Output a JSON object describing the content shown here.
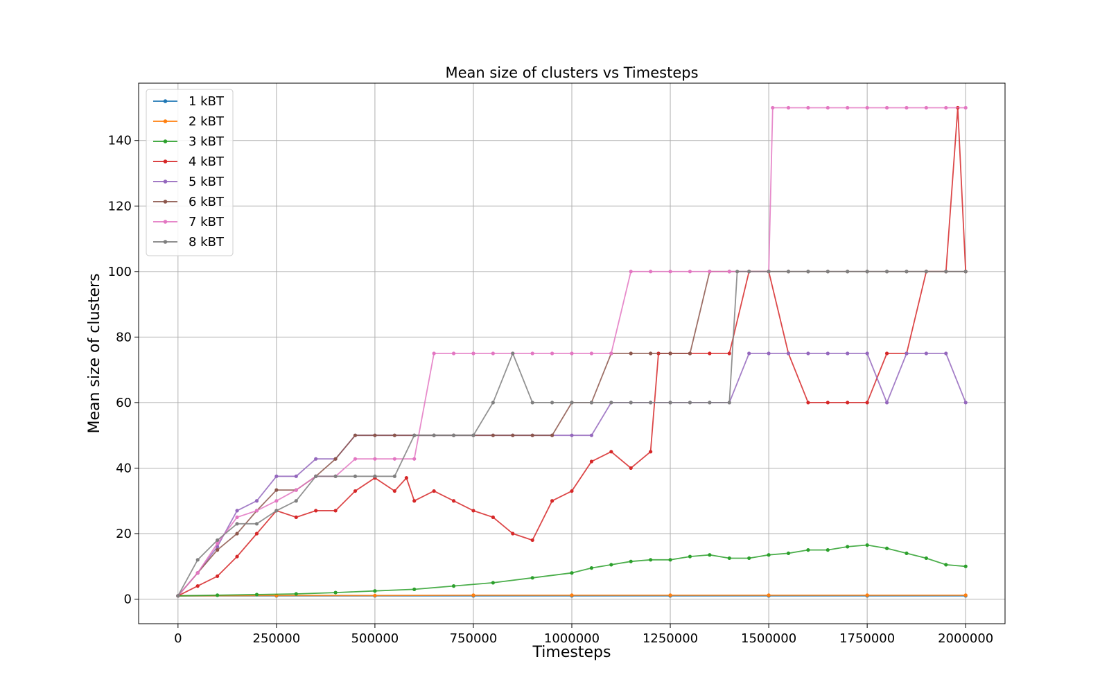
{
  "chart_data": {
    "type": "line",
    "title": "Mean size of clusters vs Timesteps",
    "xlabel": "Timesteps",
    "ylabel": "Mean size of clusters",
    "xlim": [
      -100000,
      2100000
    ],
    "ylim": [
      -7.5,
      157.5
    ],
    "xticks": [
      0,
      250000,
      500000,
      750000,
      1000000,
      1250000,
      1500000,
      1750000,
      2000000
    ],
    "yticks": [
      0,
      20,
      40,
      60,
      80,
      100,
      120,
      140
    ],
    "grid": true,
    "legend_position": "upper-left",
    "markers": true,
    "series": [
      {
        "name": "1 kBT",
        "color": "#1f77b4",
        "x": [
          0,
          250000,
          500000,
          750000,
          1000000,
          1250000,
          1500000,
          1750000,
          2000000
        ],
        "y": [
          1,
          1,
          1,
          1,
          1,
          1,
          1,
          1,
          1
        ]
      },
      {
        "name": "2 kBT",
        "color": "#ff7f0e",
        "x": [
          0,
          250000,
          500000,
          750000,
          1000000,
          1250000,
          1500000,
          1750000,
          2000000
        ],
        "y": [
          1,
          1.1,
          1.1,
          1.2,
          1.2,
          1.2,
          1.2,
          1.2,
          1.2
        ]
      },
      {
        "name": "3 kBT",
        "color": "#2ca02c",
        "x": [
          0,
          100000,
          200000,
          300000,
          400000,
          500000,
          600000,
          700000,
          800000,
          900000,
          1000000,
          1050000,
          1100000,
          1150000,
          1200000,
          1250000,
          1300000,
          1350000,
          1400000,
          1450000,
          1500000,
          1550000,
          1600000,
          1650000,
          1700000,
          1750000,
          1800000,
          1850000,
          1900000,
          1950000,
          2000000
        ],
        "y": [
          1,
          1.2,
          1.4,
          1.6,
          2,
          2.5,
          3,
          4,
          5,
          6.5,
          8,
          9.5,
          10.5,
          11.5,
          12,
          12,
          13,
          13.5,
          12.5,
          12.5,
          13.5,
          14,
          15,
          15,
          16,
          16.5,
          15.5,
          14,
          12.5,
          10.5,
          10
        ]
      },
      {
        "name": "4 kBT",
        "color": "#d62728",
        "x": [
          0,
          50000,
          100000,
          150000,
          200000,
          250000,
          300000,
          350000,
          400000,
          450000,
          500000,
          550000,
          580000,
          600000,
          650000,
          700000,
          750000,
          800000,
          850000,
          900000,
          950000,
          1000000,
          1050000,
          1100000,
          1150000,
          1200000,
          1220000,
          1250000,
          1300000,
          1350000,
          1400000,
          1450000,
          1500000,
          1550000,
          1600000,
          1650000,
          1700000,
          1750000,
          1800000,
          1850000,
          1900000,
          1950000,
          1980000,
          2000000
        ],
        "y": [
          1,
          4,
          7,
          13,
          20,
          27,
          25,
          27,
          27,
          33,
          37,
          33,
          37,
          30,
          33,
          30,
          27,
          25,
          20,
          18,
          30,
          33,
          42,
          45,
          40,
          45,
          75,
          75,
          75,
          75,
          75,
          100,
          100,
          75,
          60,
          60,
          60,
          60,
          75,
          75,
          100,
          100,
          150,
          100
        ]
      },
      {
        "name": "5 kBT",
        "color": "#9467bd",
        "x": [
          0,
          50000,
          100000,
          150000,
          200000,
          250000,
          300000,
          350000,
          400000,
          450000,
          500000,
          550000,
          600000,
          650000,
          700000,
          750000,
          800000,
          850000,
          900000,
          950000,
          1000000,
          1050000,
          1100000,
          1150000,
          1200000,
          1250000,
          1300000,
          1350000,
          1400000,
          1450000,
          1500000,
          1550000,
          1600000,
          1650000,
          1700000,
          1750000,
          1800000,
          1850000,
          1900000,
          1950000,
          2000000
        ],
        "y": [
          1,
          8,
          16,
          27,
          30,
          37.5,
          37.5,
          42.8,
          42.8,
          50,
          50,
          50,
          50,
          50,
          50,
          50,
          50,
          50,
          50,
          50,
          50,
          50,
          60,
          60,
          60,
          60,
          60,
          60,
          60,
          75,
          75,
          75,
          75,
          75,
          75,
          75,
          60,
          75,
          75,
          75,
          60
        ]
      },
      {
        "name": "6 kBT",
        "color": "#8c564b",
        "x": [
          0,
          50000,
          100000,
          150000,
          200000,
          250000,
          300000,
          350000,
          400000,
          450000,
          500000,
          550000,
          600000,
          650000,
          700000,
          750000,
          800000,
          850000,
          900000,
          950000,
          1000000,
          1050000,
          1100000,
          1150000,
          1200000,
          1250000,
          1300000,
          1350000,
          1400000,
          1450000,
          1500000,
          1550000,
          1600000,
          1650000,
          1700000,
          1750000,
          1800000,
          1850000,
          1900000,
          1950000,
          2000000
        ],
        "y": [
          1,
          8,
          15,
          20,
          27,
          33.3,
          33.3,
          37.5,
          42.8,
          50,
          50,
          50,
          50,
          50,
          50,
          50,
          50,
          50,
          50,
          50,
          60,
          60,
          75,
          75,
          75,
          75,
          75,
          100,
          100,
          100,
          100,
          100,
          100,
          100,
          100,
          100,
          100,
          100,
          100,
          100,
          100
        ]
      },
      {
        "name": "7 kBT",
        "color": "#e377c2",
        "x": [
          0,
          50000,
          100000,
          150000,
          200000,
          250000,
          300000,
          350000,
          400000,
          450000,
          500000,
          550000,
          600000,
          650000,
          700000,
          750000,
          800000,
          850000,
          900000,
          950000,
          1000000,
          1050000,
          1100000,
          1150000,
          1200000,
          1250000,
          1300000,
          1350000,
          1400000,
          1450000,
          1500000,
          1510000,
          1550000,
          1600000,
          1650000,
          1700000,
          1750000,
          1800000,
          1850000,
          1900000,
          1950000,
          2000000
        ],
        "y": [
          1,
          8,
          17,
          25,
          27,
          30,
          33.3,
          37.5,
          37.5,
          42.8,
          42.8,
          42.8,
          42.8,
          75,
          75,
          75,
          75,
          75,
          75,
          75,
          75,
          75,
          75,
          100,
          100,
          100,
          100,
          100,
          100,
          100,
          100,
          150,
          150,
          150,
          150,
          150,
          150,
          150,
          150,
          150,
          150,
          150
        ]
      },
      {
        "name": "8 kBT",
        "color": "#7f7f7f",
        "x": [
          0,
          50000,
          100000,
          150000,
          200000,
          250000,
          300000,
          350000,
          400000,
          450000,
          500000,
          550000,
          600000,
          650000,
          700000,
          750000,
          800000,
          850000,
          900000,
          950000,
          1000000,
          1050000,
          1100000,
          1150000,
          1200000,
          1250000,
          1300000,
          1350000,
          1400000,
          1420000,
          1450000,
          1500000,
          1550000,
          1600000,
          1650000,
          1700000,
          1750000,
          1800000,
          1850000,
          1900000,
          1950000,
          2000000
        ],
        "y": [
          1,
          12,
          18,
          23,
          23,
          27,
          30,
          37.5,
          37.5,
          37.5,
          37.5,
          37.5,
          50,
          50,
          50,
          50,
          60,
          75,
          60,
          60,
          60,
          60,
          60,
          60,
          60,
          60,
          60,
          60,
          60,
          100,
          100,
          100,
          100,
          100,
          100,
          100,
          100,
          100,
          100,
          100,
          100,
          100
        ]
      }
    ]
  }
}
